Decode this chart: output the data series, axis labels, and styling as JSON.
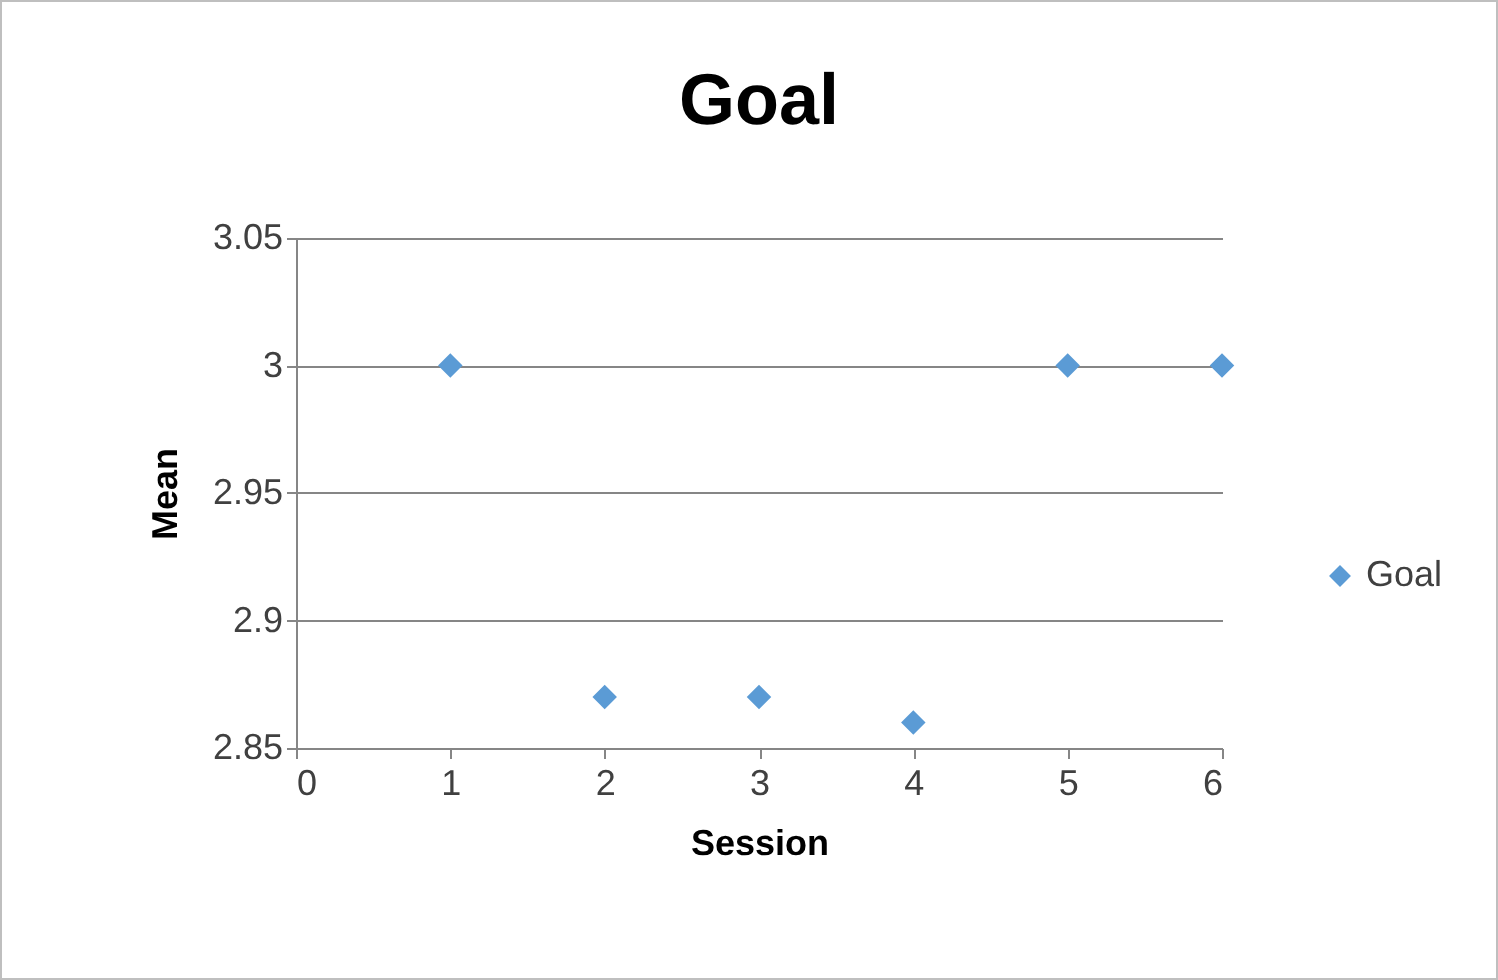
{
  "chart_data": {
    "type": "scatter",
    "title": "Goal",
    "xlabel": "Session",
    "ylabel": "Mean",
    "x": [
      1,
      2,
      3,
      4,
      5,
      6
    ],
    "series": [
      {
        "name": "Goal",
        "color": "#5b9bd5",
        "values": [
          3,
          2.87,
          2.87,
          2.86,
          3,
          3
        ]
      }
    ],
    "xlim": [
      0,
      6
    ],
    "xticks": [
      0,
      1,
      2,
      3,
      4,
      5,
      6
    ],
    "ylim": [
      2.85,
      3.05
    ],
    "yticks": [
      2.85,
      2.9,
      2.95,
      3,
      3.05
    ],
    "grid": "y",
    "legend": "right",
    "marker": "diamond"
  }
}
